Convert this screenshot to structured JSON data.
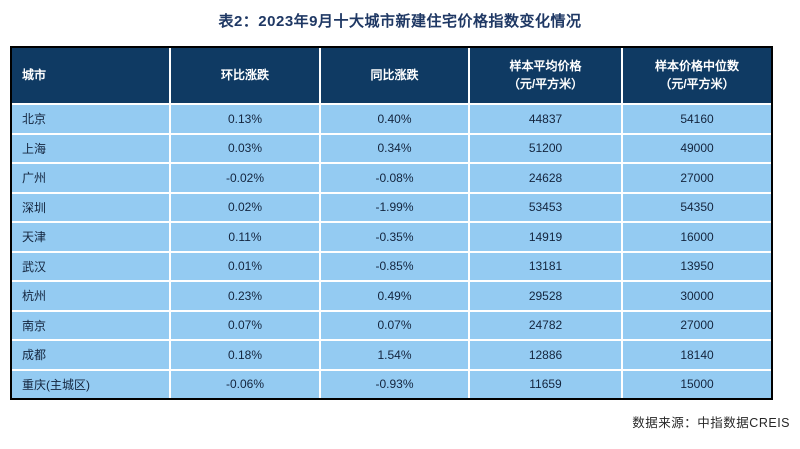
{
  "title": "表2：2023年9月十大城市新建住宅价格指数变化情况",
  "source_note": "数据来源：中指数据CREIS",
  "colors": {
    "header_bg": "#0F3A63",
    "row_bg": "#94CBF2",
    "title_text": "#1F3864",
    "border": "#000000",
    "cell_text": "#13243D"
  },
  "table": {
    "columns": [
      {
        "label": "城市",
        "sublabel": ""
      },
      {
        "label": "环比涨跌",
        "sublabel": ""
      },
      {
        "label": "同比涨跌",
        "sublabel": ""
      },
      {
        "label": "样本平均价格",
        "sublabel": "（元/平方米）"
      },
      {
        "label": "样本价格中位数",
        "sublabel": "（元/平方米）"
      }
    ],
    "rows": [
      [
        "北京",
        "0.13%",
        "0.40%",
        "44837",
        "54160"
      ],
      [
        "上海",
        "0.03%",
        "0.34%",
        "51200",
        "49000"
      ],
      [
        "广州",
        "-0.02%",
        "-0.08%",
        "24628",
        "27000"
      ],
      [
        "深圳",
        "0.02%",
        "-1.99%",
        "53453",
        "54350"
      ],
      [
        "天津",
        "0.11%",
        "-0.35%",
        "14919",
        "16000"
      ],
      [
        "武汉",
        "0.01%",
        "-0.85%",
        "13181",
        "13950"
      ],
      [
        "杭州",
        "0.23%",
        "0.49%",
        "29528",
        "30000"
      ],
      [
        "南京",
        "0.07%",
        "0.07%",
        "24782",
        "27000"
      ],
      [
        "成都",
        "0.18%",
        "1.54%",
        "12886",
        "18140"
      ],
      [
        "重庆(主城区)",
        "-0.06%",
        "-0.93%",
        "11659",
        "15000"
      ]
    ]
  },
  "chart_data": {
    "type": "table",
    "title": "表2：2023年9月十大城市新建住宅价格指数变化情况",
    "columns": [
      "城市",
      "环比涨跌",
      "同比涨跌",
      "样本平均价格（元/平方米）",
      "样本价格中位数（元/平方米）"
    ],
    "rows": [
      [
        "北京",
        "0.13%",
        "0.40%",
        44837,
        54160
      ],
      [
        "上海",
        "0.03%",
        "0.34%",
        51200,
        49000
      ],
      [
        "广州",
        "-0.02%",
        "-0.08%",
        24628,
        27000
      ],
      [
        "深圳",
        "0.02%",
        "-1.99%",
        53453,
        54350
      ],
      [
        "天津",
        "0.11%",
        "-0.35%",
        14919,
        16000
      ],
      [
        "武汉",
        "0.01%",
        "-0.85%",
        13181,
        13950
      ],
      [
        "杭州",
        "0.23%",
        "0.49%",
        29528,
        30000
      ],
      [
        "南京",
        "0.07%",
        "0.07%",
        24782,
        27000
      ],
      [
        "成都",
        "0.18%",
        "1.54%",
        12886,
        18140
      ],
      [
        "重庆(主城区)",
        "-0.06%",
        "-0.93%",
        11659,
        15000
      ]
    ],
    "source": "数据来源：中指数据CREIS"
  }
}
